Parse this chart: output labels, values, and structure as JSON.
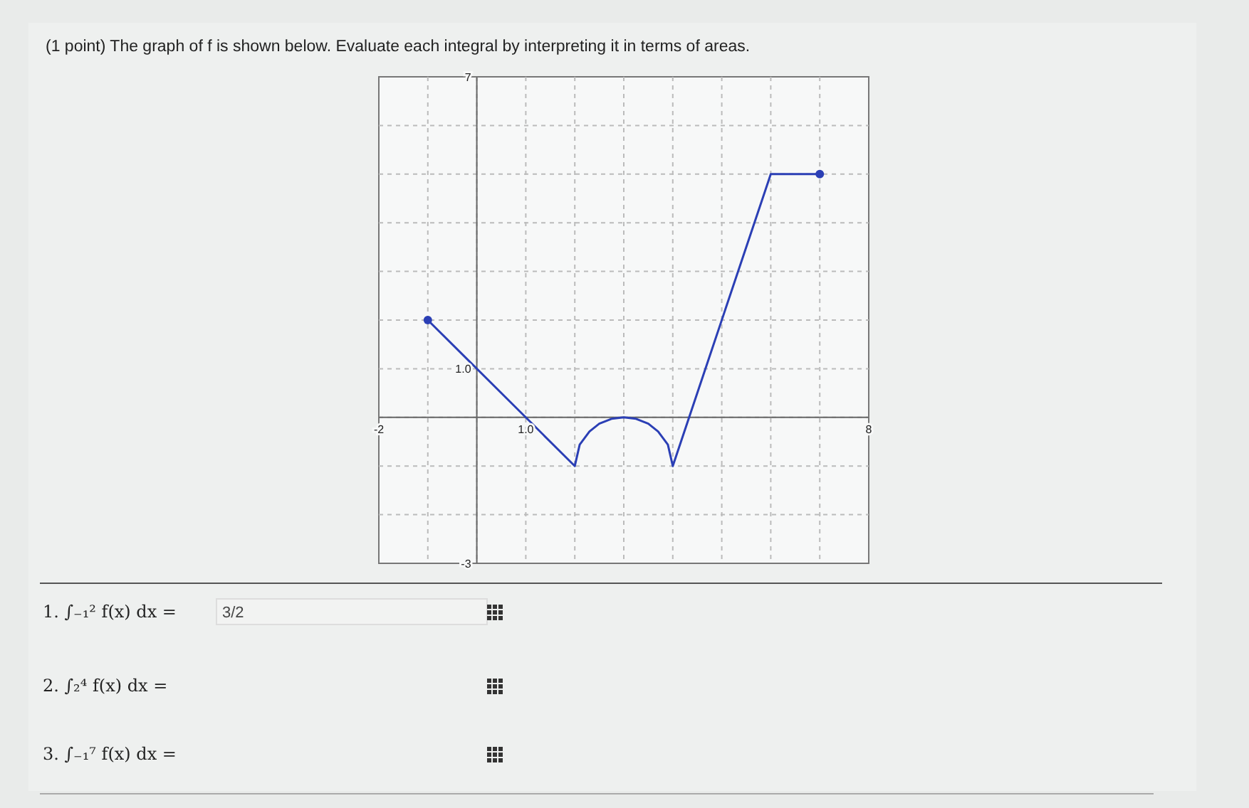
{
  "chart_data": {
    "type": "line",
    "title": "(1 point) The graph of f is shown below. Evaluate each integral by interpreting it in terms of areas.",
    "xlim": [
      -2,
      8
    ],
    "ylim": [
      -3,
      7
    ],
    "xticks": [
      {
        "value": -2,
        "label": "-2"
      },
      {
        "value": -1,
        "label": null
      },
      {
        "value": 0,
        "label": null
      },
      {
        "value": 1,
        "label": "1.0"
      },
      {
        "value": 2,
        "label": null
      },
      {
        "value": 3,
        "label": null
      },
      {
        "value": 4,
        "label": null
      },
      {
        "value": 5,
        "label": null
      },
      {
        "value": 6,
        "label": null
      },
      {
        "value": 7,
        "label": null
      },
      {
        "value": 8,
        "label": "8"
      }
    ],
    "yticks": [
      {
        "value": -3,
        "label": "-3"
      },
      {
        "value": -2,
        "label": null
      },
      {
        "value": -1,
        "label": null
      },
      {
        "value": 0,
        "label": null
      },
      {
        "value": 1,
        "label": "1.0"
      },
      {
        "value": 2,
        "label": null
      },
      {
        "value": 3,
        "label": null
      },
      {
        "value": 4,
        "label": null
      },
      {
        "value": 5,
        "label": null
      },
      {
        "value": 6,
        "label": null
      },
      {
        "value": 7,
        "label": "7"
      }
    ],
    "grid": true,
    "line_style": "solid",
    "series": [
      {
        "color": "#2b3fb5",
        "x": [
          -1,
          2,
          2.1,
          2.3,
          2.5,
          2.75,
          3,
          3.25,
          3.5,
          3.7,
          3.9,
          4,
          6,
          7
        ],
        "values": [
          2,
          -1,
          -0.56,
          -0.29,
          -0.13,
          -0.03,
          0,
          -0.03,
          -0.13,
          -0.29,
          -0.56,
          -1,
          5,
          5
        ]
      },
      {
        "type": "scatter",
        "color": "#2b3fb5",
        "x": [
          -1,
          7
        ],
        "values": [
          2,
          5
        ],
        "marker": "circle"
      }
    ],
    "annotations": [
      "1. ∫₋₁² f(x) dx =",
      "3/2",
      "2. ∫₂⁴ f(x) dx =",
      "3. ∫₋₁⁷ f(x) dx ="
    ]
  }
}
